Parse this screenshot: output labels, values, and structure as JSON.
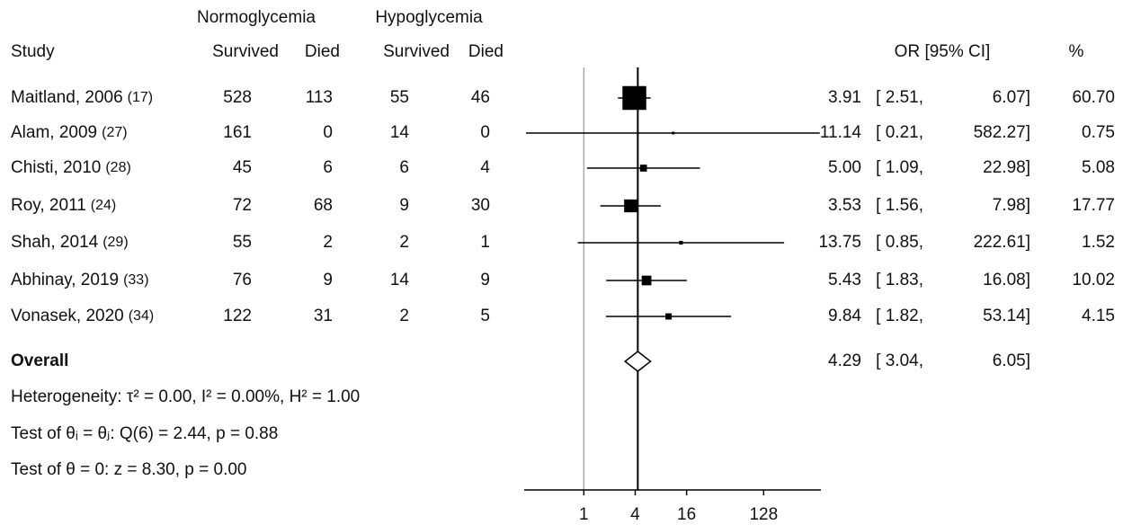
{
  "chart_data": {
    "type": "forest",
    "group_headers": [
      "Normoglycemia",
      "Hypoglycemia"
    ],
    "column_headers": [
      "Study",
      "Survived",
      "Died",
      "Survived",
      "Died",
      "OR [95% CI]",
      "%"
    ],
    "studies": [
      {
        "name": "Maitland, 2006",
        "ref": "(17)",
        "counts": [
          528,
          113,
          55,
          46
        ],
        "values": [
          3.91,
          2.51,
          6.07,
          60.7
        ],
        "value_labels": [
          "3.91",
          "[ 2.51,",
          "6.07]",
          "60.70"
        ]
      },
      {
        "name": "Alam, 2009",
        "ref": "(27)",
        "counts": [
          161,
          0,
          14,
          0
        ],
        "values": [
          11.14,
          0.21,
          582.27,
          0.75
        ],
        "value_labels": [
          "11.14",
          "[ 0.21,",
          "582.27]",
          "0.75"
        ]
      },
      {
        "name": "Chisti, 2010",
        "ref": "(28)",
        "counts": [
          45,
          6,
          6,
          4
        ],
        "values": [
          5.0,
          1.09,
          22.98,
          5.08
        ],
        "value_labels": [
          "5.00",
          "[ 1.09,",
          "22.98]",
          "5.08"
        ]
      },
      {
        "name": "Roy, 2011",
        "ref": "(24)",
        "counts": [
          72,
          68,
          9,
          30
        ],
        "values": [
          3.53,
          1.56,
          7.98,
          17.77
        ],
        "value_labels": [
          "3.53",
          "[ 1.56,",
          "7.98]",
          "17.77"
        ]
      },
      {
        "name": "Shah, 2014",
        "ref": "(29)",
        "counts": [
          55,
          2,
          2,
          1
        ],
        "values": [
          13.75,
          0.85,
          222.61,
          1.52
        ],
        "value_labels": [
          "13.75",
          "[ 0.85,",
          "222.61]",
          "1.52"
        ]
      },
      {
        "name": "Abhinay, 2019",
        "ref": "(33)",
        "counts": [
          76,
          9,
          14,
          9
        ],
        "values": [
          5.43,
          1.83,
          16.08,
          10.02
        ],
        "value_labels": [
          "5.43",
          "[ 1.83,",
          "16.08]",
          "10.02"
        ]
      },
      {
        "name": "Vonasek, 2020",
        "ref": "(34)",
        "counts": [
          122,
          31,
          2,
          5
        ],
        "values": [
          9.84,
          1.82,
          53.14,
          4.15
        ],
        "value_labels": [
          "9.84",
          "[ 1.82,",
          "53.14]",
          "4.15"
        ]
      }
    ],
    "overall": {
      "name": "Overall",
      "values": [
        4.29,
        3.04,
        6.05
      ],
      "value_labels": [
        "4.29",
        "[ 3.04,",
        "6.05]"
      ]
    },
    "notes": [
      "Heterogeneity: τ² = 0.00, I² = 0.00%, H² = 1.00",
      "Test of θᵢ = θⱼ: Q(6) = 2.44, p = 0.88",
      "Test of θ = 0: z = 8.30, p = 0.00"
    ],
    "log_base": 2,
    "xlim": [
      0.2,
      600
    ],
    "xticks": [
      1,
      4,
      16,
      128
    ],
    "reference_line": 1,
    "color": "#000000",
    "reference_color": "#aaaaaa"
  }
}
